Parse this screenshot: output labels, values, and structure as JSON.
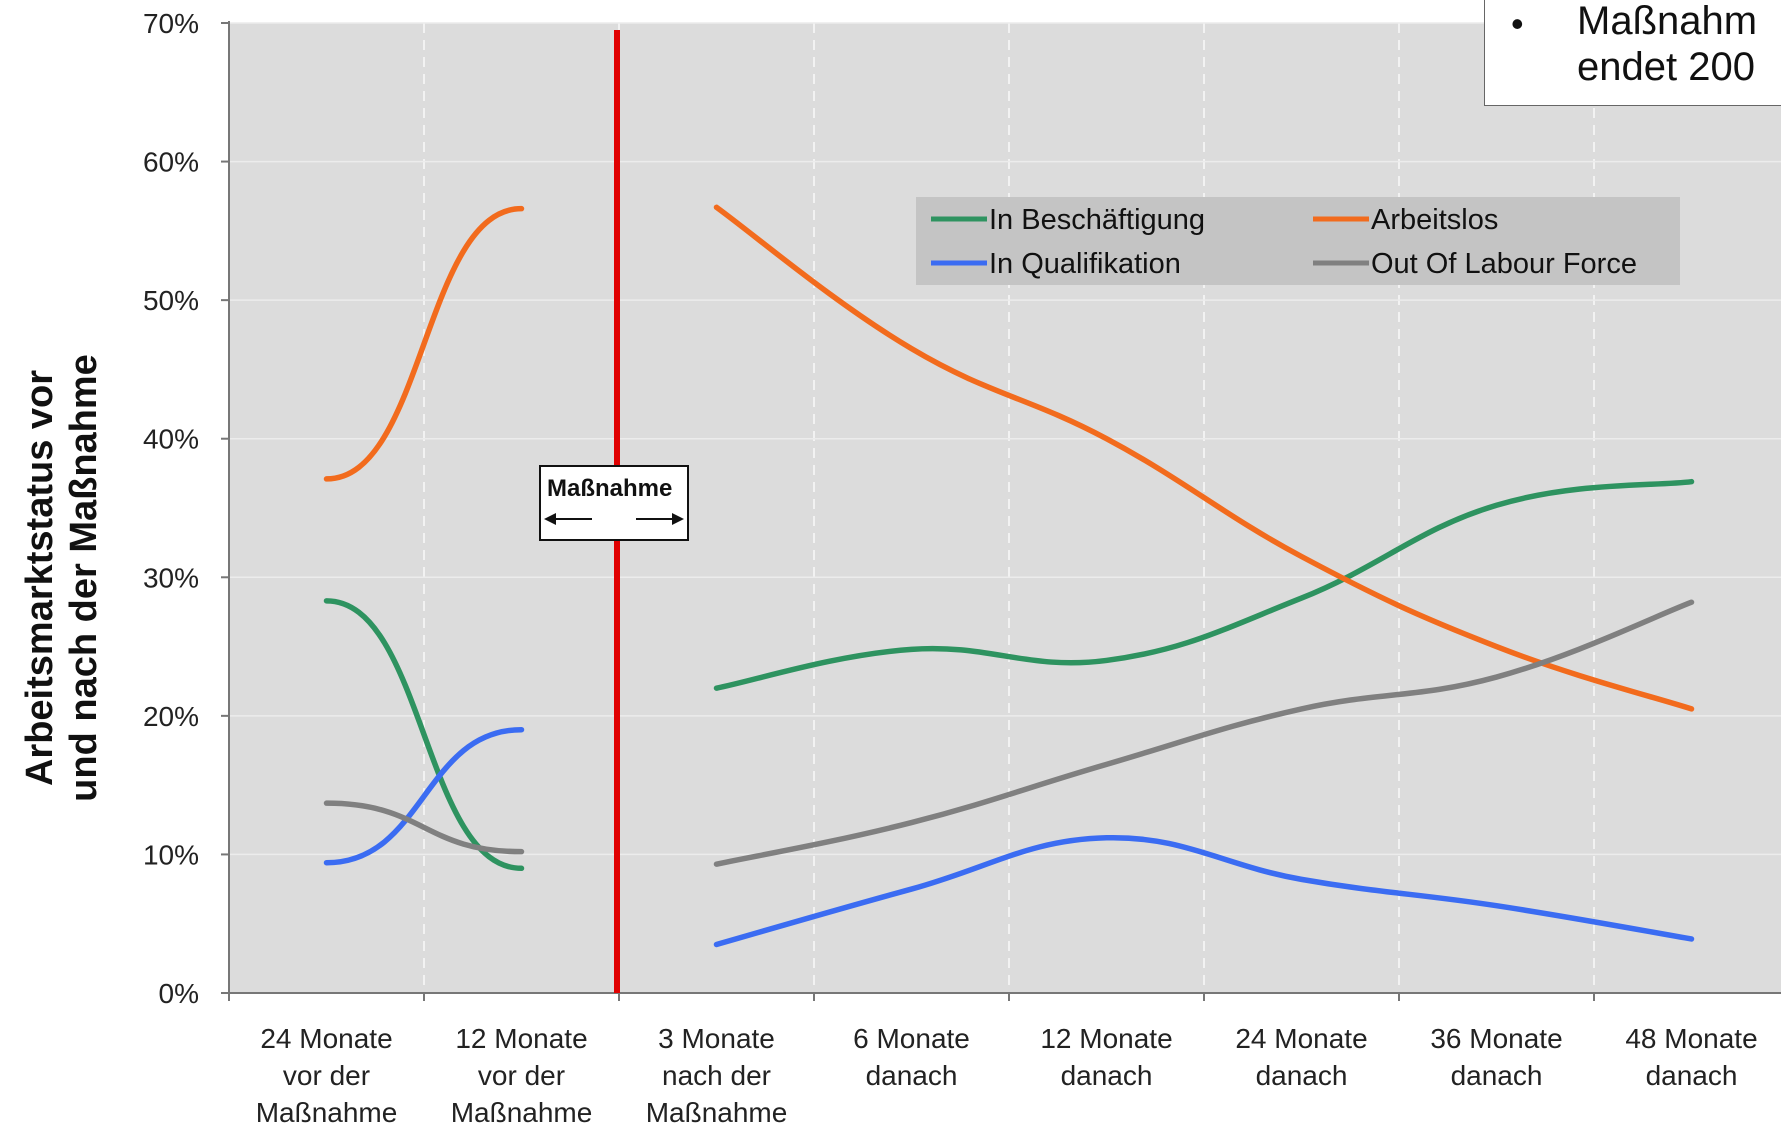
{
  "chart_data": {
    "type": "line",
    "title": "",
    "ylabel": [
      "Arbeitsmarktstatus vor",
      "und nach der Maßnahme"
    ],
    "xlabel": "",
    "ylim": [
      0,
      70
    ],
    "yticks": [
      "0%",
      "10%",
      "20%",
      "30%",
      "40%",
      "50%",
      "60%",
      "70%"
    ],
    "categories": [
      [
        "24 Monate",
        "vor der",
        "Maßnahme"
      ],
      [
        "12 Monate",
        "vor der",
        "Maßnahme"
      ],
      [
        "3 Monate",
        "nach der",
        "Maßnahme"
      ],
      [
        "6 Monate",
        "danach"
      ],
      [
        "12 Monate",
        "danach"
      ],
      [
        "24 Monate",
        "danach"
      ],
      [
        "36 Monate",
        "danach"
      ],
      [
        "48 Monate",
        "danach"
      ]
    ],
    "grid": true,
    "legend_position": "top-right",
    "series": [
      {
        "name": "In Beschäftigung",
        "color": "#2e9360",
        "before": [
          28.3,
          9.0
        ],
        "after": [
          22.0,
          24.8,
          24.0,
          28.5,
          35.2,
          36.9
        ]
      },
      {
        "name": "Arbeitslos",
        "color": "#f26b1d",
        "before": [
          37.1,
          56.6
        ],
        "after": [
          56.7,
          46.5,
          40.0,
          31.5,
          25.0,
          20.5
        ]
      },
      {
        "name": "In Qualifikation",
        "color": "#3b6cf2",
        "before": [
          9.4,
          19.0
        ],
        "after": [
          3.5,
          7.5,
          11.2,
          8.2,
          6.3,
          3.9
        ]
      },
      {
        "name": "Out Of Labour Force",
        "color": "#808080",
        "before": [
          13.7,
          10.2
        ],
        "after": [
          9.3,
          12.3,
          16.5,
          20.5,
          22.8,
          28.2
        ]
      }
    ],
    "annotations": {
      "intervention_line_color": "#e00000",
      "intervention_label": "Maßnahme"
    }
  },
  "note": {
    "bullet": "•",
    "line1": "Maßnahm",
    "line2": "endet 200"
  }
}
